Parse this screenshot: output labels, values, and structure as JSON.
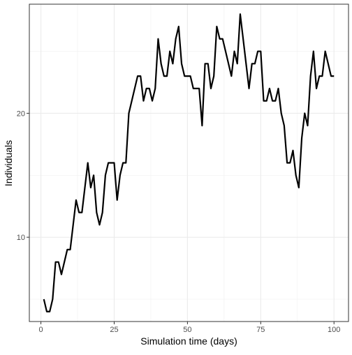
{
  "chart_data": {
    "type": "line",
    "title": "",
    "xlabel": "Simulation time (days)",
    "ylabel": "Individuals",
    "xlim": [
      -3.95,
      104.95
    ],
    "ylim": [
      3.2,
      28.8
    ],
    "x_ticks": [
      0,
      25,
      50,
      75,
      100
    ],
    "y_ticks": [
      10,
      20
    ],
    "grid": true,
    "legend": "none",
    "series": [
      {
        "color": "#000000",
        "x": [
          1,
          2,
          3,
          4,
          5,
          6,
          7,
          8,
          9,
          10,
          11,
          12,
          13,
          14,
          15,
          16,
          17,
          18,
          19,
          20,
          21,
          22,
          23,
          24,
          25,
          26,
          27,
          28,
          29,
          30,
          31,
          32,
          33,
          34,
          35,
          36,
          37,
          38,
          39,
          40,
          41,
          42,
          43,
          44,
          45,
          46,
          47,
          48,
          49,
          50,
          51,
          52,
          53,
          54,
          55,
          56,
          57,
          58,
          59,
          60,
          61,
          62,
          63,
          64,
          65,
          66,
          67,
          68,
          69,
          70,
          71,
          72,
          73,
          74,
          75,
          76,
          77,
          78,
          79,
          80,
          81,
          82,
          83,
          84,
          85,
          86,
          87,
          88,
          89,
          90,
          91,
          92,
          93,
          94,
          95,
          96,
          97,
          98,
          99,
          100
        ],
        "values": [
          5,
          4,
          4,
          5,
          8,
          8,
          7,
          8,
          9,
          9,
          11,
          13,
          12,
          12,
          14,
          16,
          14,
          15,
          12,
          11,
          12,
          15,
          16,
          16,
          16,
          13,
          15,
          16,
          16,
          20,
          21,
          22,
          23,
          23,
          21,
          22,
          22,
          21,
          22,
          26,
          24,
          23,
          23,
          25,
          24,
          26,
          27,
          24,
          23,
          23,
          23,
          22,
          22,
          22,
          19,
          24,
          24,
          22,
          23,
          27,
          26,
          26,
          25,
          24,
          23,
          25,
          24,
          28,
          26,
          24,
          22,
          24,
          24,
          25,
          25,
          21,
          21,
          22,
          21,
          21,
          22,
          20,
          19,
          16,
          16,
          17,
          15,
          14,
          18,
          20,
          19,
          23,
          25,
          22,
          23,
          23,
          25,
          24,
          23,
          23
        ]
      }
    ]
  }
}
